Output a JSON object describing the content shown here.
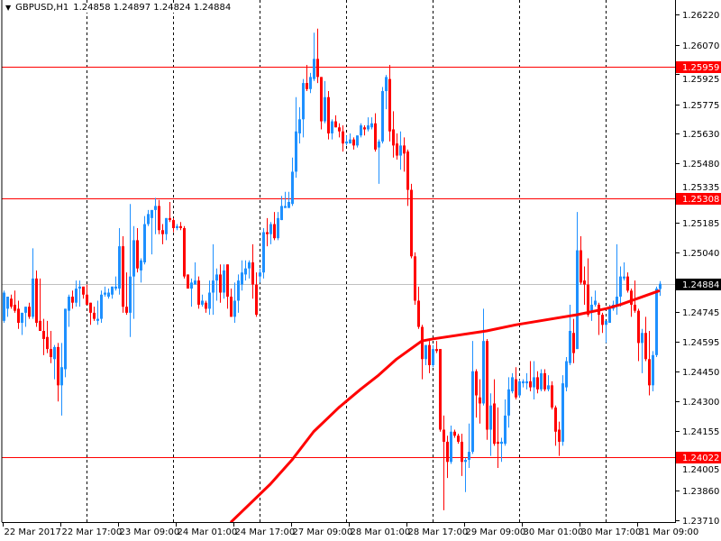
{
  "header": {
    "symbol": "GBPUSD,H1",
    "ohlc": "1.24858 1.24897 1.24824 1.24884",
    "menu_icon": "triangle-down-icon"
  },
  "chart_data": {
    "type": "candlestick",
    "symbol": "GBPUSD",
    "timeframe": "H1",
    "ylim": [
      1.23697,
      1.26292
    ],
    "grid": "vertical-dashed",
    "colors": {
      "up": "#1e90ff",
      "down": "#ff0000",
      "ma": "#ff0000",
      "level": "#ff0000",
      "bid": "#c0c0c0",
      "bid_label_bg": "#000000",
      "level_label_bg": "#ff0000"
    },
    "y_ticks": [
      "1.26220",
      "1.26070",
      "1.25925",
      "1.25775",
      "1.25630",
      "1.25480",
      "1.25335",
      "1.25185",
      "1.25040",
      "1.24745",
      "1.24595",
      "1.24450",
      "1.24300",
      "1.24155",
      "1.24005",
      "1.23860",
      "1.23710"
    ],
    "x_ticks": [
      "22 Mar 2017",
      "22 Mar 17:00",
      "23 Mar 09:00",
      "24 Mar 01:00",
      "24 Mar 17:00",
      "27 Mar 09:00",
      "28 Mar 01:00",
      "28 Mar 17:00",
      "29 Mar 09:00",
      "30 Mar 01:00",
      "30 Mar 17:00",
      "31 Mar 09:00"
    ],
    "levels": [
      {
        "price": 1.25959,
        "label": "1.25959",
        "kind": "level"
      },
      {
        "price": 1.25308,
        "label": "1.25308",
        "kind": "level"
      },
      {
        "price": 1.24022,
        "label": "1.24022",
        "kind": "level"
      },
      {
        "price": 1.24884,
        "label": "1.24884",
        "kind": "bid"
      }
    ],
    "candles_ohlc": [
      [
        1.247,
        1.2485,
        1.2469,
        1.2484
      ],
      [
        1.2476,
        1.2482,
        1.2472,
        1.2482
      ],
      [
        1.2481,
        1.2483,
        1.2476,
        1.2477
      ],
      [
        1.2478,
        1.2485,
        1.2474,
        1.2475
      ],
      [
        1.2476,
        1.248,
        1.2466,
        1.2469
      ],
      [
        1.2469,
        1.2474,
        1.2463,
        1.2474
      ],
      [
        1.2474,
        1.2477,
        1.2467,
        1.2477
      ],
      [
        1.2477,
        1.2479,
        1.2471,
        1.2472
      ],
      [
        1.2472,
        1.2506,
        1.2471,
        1.2491
      ],
      [
        1.2491,
        1.2495,
        1.2467,
        1.2469
      ],
      [
        1.247,
        1.2491,
        1.2465,
        1.2465
      ],
      [
        1.2465,
        1.2471,
        1.2453,
        1.2461
      ],
      [
        1.2462,
        1.247,
        1.2454,
        1.2456
      ],
      [
        1.2456,
        1.2465,
        1.2449,
        1.2452
      ],
      [
        1.2451,
        1.2458,
        1.2441,
        1.2457
      ],
      [
        1.2457,
        1.2459,
        1.243,
        1.2438
      ],
      [
        1.2438,
        1.2459,
        1.2423,
        1.2447
      ],
      [
        1.2446,
        1.2476,
        1.2442,
        1.2476
      ],
      [
        1.2475,
        1.2483,
        1.2467,
        1.2482
      ],
      [
        1.2482,
        1.2485,
        1.2476,
        1.2479
      ],
      [
        1.2479,
        1.249,
        1.2477,
        1.2486
      ],
      [
        1.2486,
        1.249,
        1.2477,
        1.2487
      ],
      [
        1.2487,
        1.2487,
        1.2481,
        1.2483
      ],
      [
        1.2483,
        1.2488,
        1.2478,
        1.2478
      ],
      [
        1.2479,
        1.2479,
        1.2468,
        1.2474
      ],
      [
        1.2474,
        1.2477,
        1.247,
        1.2471
      ],
      [
        1.247,
        1.248,
        1.2468,
        1.2471
      ],
      [
        1.2471,
        1.2485,
        1.2469,
        1.2483
      ],
      [
        1.2483,
        1.2487,
        1.2482,
        1.2484
      ],
      [
        1.2482,
        1.2486,
        1.2481,
        1.2484
      ],
      [
        1.2483,
        1.2487,
        1.2481,
        1.2487
      ],
      [
        1.2486,
        1.2492,
        1.2485,
        1.2487
      ],
      [
        1.2486,
        1.2516,
        1.2483,
        1.2507
      ],
      [
        1.2507,
        1.2512,
        1.2474,
        1.2477
      ],
      [
        1.2477,
        1.2494,
        1.2473,
        1.2474
      ],
      [
        1.2474,
        1.2528,
        1.2462,
        1.2492
      ],
      [
        1.2492,
        1.2517,
        1.2471,
        1.251
      ],
      [
        1.251,
        1.2516,
        1.2494,
        1.2496
      ],
      [
        1.2495,
        1.2501,
        1.2489,
        1.25
      ],
      [
        1.2499,
        1.2522,
        1.2498,
        1.2518
      ],
      [
        1.2518,
        1.2525,
        1.2517,
        1.2523
      ],
      [
        1.2521,
        1.2525,
        1.2503,
        1.2525
      ],
      [
        1.2525,
        1.2531,
        1.2513,
        1.2527
      ],
      [
        1.2527,
        1.253,
        1.2513,
        1.2515
      ],
      [
        1.2515,
        1.2518,
        1.2508,
        1.2513
      ],
      [
        1.2513,
        1.2521,
        1.251,
        1.2521
      ],
      [
        1.2521,
        1.2529,
        1.2519,
        1.252
      ],
      [
        1.252,
        1.2521,
        1.2514,
        1.2516
      ],
      [
        1.2516,
        1.2518,
        1.2515,
        1.2517
      ],
      [
        1.2517,
        1.2519,
        1.2515,
        1.2516
      ],
      [
        1.2516,
        1.2517,
        1.2491,
        1.2492
      ],
      [
        1.2493,
        1.2493,
        1.2486,
        1.2486
      ],
      [
        1.2486,
        1.2491,
        1.2477,
        1.2489
      ],
      [
        1.2488,
        1.2499,
        1.2488,
        1.249
      ],
      [
        1.249,
        1.2492,
        1.2476,
        1.2478
      ],
      [
        1.2478,
        1.2483,
        1.2477,
        1.248
      ],
      [
        1.2479,
        1.248,
        1.2474,
        1.2476
      ],
      [
        1.2476,
        1.249,
        1.2473,
        1.2484
      ],
      [
        1.2484,
        1.2508,
        1.2473,
        1.249
      ],
      [
        1.249,
        1.2496,
        1.248,
        1.2493
      ],
      [
        1.2493,
        1.2498,
        1.2479,
        1.2484
      ],
      [
        1.2484,
        1.2498,
        1.2481,
        1.2495
      ],
      [
        1.2498,
        1.2498,
        1.2476,
        1.2482
      ],
      [
        1.2482,
        1.2486,
        1.2472,
        1.2472
      ],
      [
        1.2472,
        1.2489,
        1.2469,
        1.248
      ],
      [
        1.248,
        1.2493,
        1.2474,
        1.249
      ],
      [
        1.2488,
        1.25,
        1.2485,
        1.2494
      ],
      [
        1.2493,
        1.25,
        1.249,
        1.2496
      ],
      [
        1.2496,
        1.25,
        1.2491,
        1.2499
      ],
      [
        1.2499,
        1.2508,
        1.2481,
        1.2488
      ],
      [
        1.2488,
        1.2494,
        1.2472,
        1.2473
      ],
      [
        1.2492,
        1.2496,
        1.2489,
        1.2494
      ],
      [
        1.2494,
        1.2516,
        1.2491,
        1.2514
      ],
      [
        1.2514,
        1.2521,
        1.2507,
        1.2513
      ],
      [
        1.2513,
        1.2519,
        1.2508,
        1.2518
      ],
      [
        1.2518,
        1.2524,
        1.251,
        1.2511
      ],
      [
        1.2511,
        1.2524,
        1.251,
        1.2521
      ],
      [
        1.252,
        1.2532,
        1.252,
        1.2527
      ],
      [
        1.2526,
        1.2534,
        1.2526,
        1.2527
      ],
      [
        1.2526,
        1.2534,
        1.2526,
        1.2529
      ],
      [
        1.2528,
        1.2551,
        1.2527,
        1.2544
      ],
      [
        1.2544,
        1.2581,
        1.2541,
        1.2564
      ],
      [
        1.2563,
        1.2576,
        1.2558,
        1.257
      ],
      [
        1.257,
        1.259,
        1.2561,
        1.2588
      ],
      [
        1.2588,
        1.2597,
        1.2584,
        1.2585
      ],
      [
        1.2585,
        1.2593,
        1.2583,
        1.2591
      ],
      [
        1.259,
        1.2613,
        1.2589,
        1.26
      ],
      [
        1.26,
        1.2615,
        1.2588,
        1.2591
      ],
      [
        1.2591,
        1.2591,
        1.2565,
        1.2569
      ],
      [
        1.2569,
        1.2589,
        1.2568,
        1.2581
      ],
      [
        1.2581,
        1.2584,
        1.256,
        1.2563
      ],
      [
        1.2563,
        1.257,
        1.256,
        1.2569
      ],
      [
        1.2569,
        1.2572,
        1.2566,
        1.2566
      ],
      [
        1.2566,
        1.2568,
        1.2561,
        1.2564
      ],
      [
        1.2564,
        1.2567,
        1.2554,
        1.2558
      ],
      [
        1.2558,
        1.2562,
        1.2557,
        1.2559
      ],
      [
        1.2558,
        1.2563,
        1.2558,
        1.256
      ],
      [
        1.256,
        1.2561,
        1.2555,
        1.2557
      ],
      [
        1.2557,
        1.2562,
        1.2556,
        1.2562
      ],
      [
        1.2562,
        1.2568,
        1.2561,
        1.2567
      ],
      [
        1.2566,
        1.2567,
        1.2562,
        1.2565
      ],
      [
        1.2565,
        1.2571,
        1.2564,
        1.2567
      ],
      [
        1.2566,
        1.2571,
        1.2565,
        1.2568
      ],
      [
        1.2568,
        1.2573,
        1.2554,
        1.2555
      ],
      [
        1.2556,
        1.256,
        1.2538,
        1.2559
      ],
      [
        1.2559,
        1.2586,
        1.2558,
        1.2584
      ],
      [
        1.2584,
        1.2592,
        1.2575,
        1.2591
      ],
      [
        1.259,
        1.2597,
        1.2559,
        1.2564
      ],
      [
        1.2565,
        1.2574,
        1.2551,
        1.2557
      ],
      [
        1.2558,
        1.2563,
        1.255,
        1.2552
      ],
      [
        1.2552,
        1.2564,
        1.2545,
        1.2557
      ],
      [
        1.2557,
        1.2561,
        1.2544,
        1.2553
      ],
      [
        1.2554,
        1.2555,
        1.2527,
        1.2535
      ],
      [
        1.2535,
        1.2538,
        1.2501,
        1.2502
      ],
      [
        1.2502,
        1.2504,
        1.2478,
        1.248
      ],
      [
        1.248,
        1.2487,
        1.2466,
        1.2467
      ],
      [
        1.2467,
        1.2468,
        1.2441,
        1.2451
      ],
      [
        1.2451,
        1.2458,
        1.2448,
        1.2458
      ],
      [
        1.2458,
        1.246,
        1.2444,
        1.2448
      ],
      [
        1.2448,
        1.2458,
        1.2447,
        1.2456
      ],
      [
        1.2456,
        1.246,
        1.2454,
        1.2455
      ],
      [
        1.2456,
        1.2456,
        1.2415,
        1.2416
      ],
      [
        1.2416,
        1.2423,
        1.2376,
        1.241
      ],
      [
        1.241,
        1.2413,
        1.2392,
        1.24
      ],
      [
        1.24,
        1.2418,
        1.2399,
        1.2415
      ],
      [
        1.2415,
        1.2416,
        1.2412,
        1.2413
      ],
      [
        1.2413,
        1.2414,
        1.2409,
        1.241
      ],
      [
        1.241,
        1.2414,
        1.2393,
        1.24
      ],
      [
        1.24,
        1.2402,
        1.2385,
        1.2401
      ],
      [
        1.2401,
        1.2419,
        1.2397,
        1.2405
      ],
      [
        1.2405,
        1.246,
        1.2404,
        1.2445
      ],
      [
        1.2445,
        1.2446,
        1.2422,
        1.2433
      ],
      [
        1.2432,
        1.2441,
        1.2419,
        1.2429
      ],
      [
        1.2429,
        1.2476,
        1.2428,
        1.246
      ],
      [
        1.246,
        1.2461,
        1.2411,
        1.2416
      ],
      [
        1.2416,
        1.2434,
        1.2403,
        1.2428
      ],
      [
        1.2429,
        1.2441,
        1.2408,
        1.2409
      ],
      [
        1.241,
        1.2427,
        1.2397,
        1.2409
      ],
      [
        1.2409,
        1.2412,
        1.24,
        1.241
      ],
      [
        1.2409,
        1.2431,
        1.2408,
        1.2423
      ],
      [
        1.2423,
        1.2442,
        1.2417,
        1.2436
      ],
      [
        1.2435,
        1.2444,
        1.2434,
        1.2442
      ],
      [
        1.2441,
        1.2447,
        1.2431,
        1.2432
      ],
      [
        1.2433,
        1.2441,
        1.2432,
        1.244
      ],
      [
        1.2439,
        1.2441,
        1.2437,
        1.244
      ],
      [
        1.2439,
        1.2444,
        1.2436,
        1.244
      ],
      [
        1.244,
        1.245,
        1.2435,
        1.2437
      ],
      [
        1.2437,
        1.245,
        1.2431,
        1.2442
      ],
      [
        1.2442,
        1.2445,
        1.2434,
        1.2436
      ],
      [
        1.2436,
        1.2446,
        1.2435,
        1.2444
      ],
      [
        1.2444,
        1.2446,
        1.2435,
        1.2436
      ],
      [
        1.2436,
        1.2443,
        1.2435,
        1.2438
      ],
      [
        1.2438,
        1.244,
        1.2426,
        1.2427
      ],
      [
        1.2427,
        1.2428,
        1.2408,
        1.2415
      ],
      [
        1.2416,
        1.242,
        1.2403,
        1.241
      ],
      [
        1.241,
        1.2443,
        1.2408,
        1.2439
      ],
      [
        1.2437,
        1.2452,
        1.2435,
        1.245
      ],
      [
        1.2449,
        1.2478,
        1.2448,
        1.2465
      ],
      [
        1.2464,
        1.2471,
        1.2449,
        1.2454
      ],
      [
        1.2456,
        1.2524,
        1.2456,
        1.2505
      ],
      [
        1.2505,
        1.2512,
        1.2488,
        1.2489
      ],
      [
        1.249,
        1.2497,
        1.2478,
        1.2488
      ],
      [
        1.2488,
        1.2501,
        1.2472,
        1.2473
      ],
      [
        1.2475,
        1.2482,
        1.247,
        1.2478
      ],
      [
        1.2478,
        1.2485,
        1.2477,
        1.248
      ],
      [
        1.2478,
        1.2479,
        1.2463,
        1.2473
      ],
      [
        1.2473,
        1.2474,
        1.2464,
        1.2468
      ],
      [
        1.2468,
        1.247,
        1.2459,
        1.247
      ],
      [
        1.2469,
        1.2478,
        1.2469,
        1.2476
      ],
      [
        1.2476,
        1.248,
        1.2475,
        1.2478
      ],
      [
        1.2478,
        1.2508,
        1.2473,
        1.2482
      ],
      [
        1.2482,
        1.2497,
        1.2477,
        1.2492
      ],
      [
        1.2491,
        1.2499,
        1.249,
        1.2492
      ],
      [
        1.2492,
        1.2494,
        1.2484,
        1.2485
      ],
      [
        1.2485,
        1.2486,
        1.2472,
        1.2478
      ],
      [
        1.2478,
        1.249,
        1.2474,
        1.2475
      ],
      [
        1.2475,
        1.2476,
        1.245,
        1.2459
      ],
      [
        1.2459,
        1.2466,
        1.2444,
        1.2464
      ],
      [
        1.2464,
        1.2472,
        1.245,
        1.2451
      ],
      [
        1.2451,
        1.2465,
        1.2433,
        1.2438
      ],
      [
        1.2438,
        1.2455,
        1.2435,
        1.2453
      ],
      [
        1.2453,
        1.2487,
        1.2452,
        1.2486
      ],
      [
        1.24858,
        1.24897,
        1.24824,
        1.24884
      ]
    ],
    "moving_average_points": [
      [
        64,
        1.237
      ],
      [
        75,
        1.2389
      ],
      [
        81,
        1.2401
      ],
      [
        87,
        1.2415
      ],
      [
        94,
        1.2427
      ],
      [
        100,
        1.2436
      ],
      [
        105,
        1.2443
      ],
      [
        110,
        1.2451
      ],
      [
        117,
        1.246
      ],
      [
        120,
        1.2461
      ],
      [
        135,
        1.2465
      ],
      [
        143,
        1.2468
      ],
      [
        160,
        1.2473
      ],
      [
        168,
        1.2476
      ],
      [
        172,
        1.2478
      ],
      [
        183,
        1.2485
      ]
    ]
  }
}
